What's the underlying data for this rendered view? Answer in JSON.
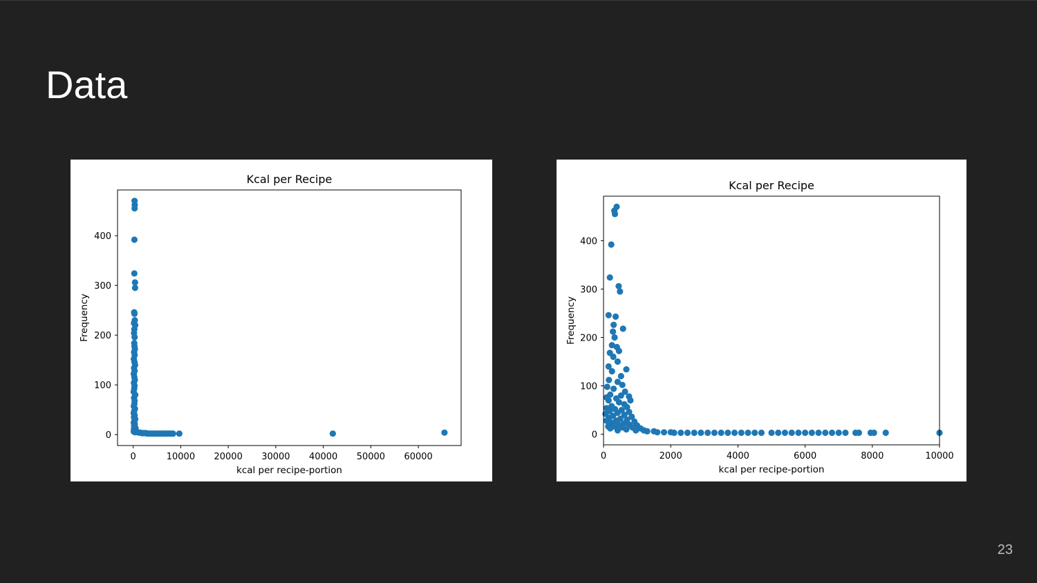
{
  "slide": {
    "title": "Data",
    "page_number": "23"
  },
  "colors": {
    "background": "#212121",
    "panel": "#ffffff",
    "marker": "#1f77b4",
    "title_text": "#ffffff",
    "page_number_text": "#bdbdbd"
  },
  "chart_data": [
    {
      "type": "scatter",
      "title": "Kcal per Recipe",
      "xlabel": "kcal per recipe-portion",
      "ylabel": "Frequency",
      "xlim": [
        -3300,
        69000
      ],
      "ylim": [
        -22,
        492
      ],
      "xticks": [
        0,
        10000,
        20000,
        30000,
        40000,
        50000,
        60000
      ],
      "xtick_labels": [
        "0",
        "10000",
        "20000",
        "30000",
        "40000",
        "50000",
        "60000"
      ],
      "yticks": [
        0,
        100,
        200,
        300,
        400
      ],
      "ytick_labels": [
        "0",
        "100",
        "200",
        "300",
        "400"
      ],
      "grid": false,
      "points": [
        [
          280,
          470
        ],
        [
          320,
          462
        ],
        [
          300,
          455
        ],
        [
          250,
          392
        ],
        [
          230,
          324
        ],
        [
          380,
          306
        ],
        [
          400,
          295
        ],
        [
          210,
          246
        ],
        [
          260,
          243
        ],
        [
          330,
          230
        ],
        [
          160,
          224
        ],
        [
          420,
          220
        ],
        [
          240,
          212
        ],
        [
          180,
          204
        ],
        [
          300,
          196
        ],
        [
          220,
          184
        ],
        [
          270,
          178
        ],
        [
          350,
          172
        ],
        [
          190,
          166
        ],
        [
          310,
          160
        ],
        [
          140,
          152
        ],
        [
          260,
          146
        ],
        [
          400,
          140
        ],
        [
          170,
          134
        ],
        [
          300,
          128
        ],
        [
          120,
          122
        ],
        [
          240,
          116
        ],
        [
          330,
          110
        ],
        [
          150,
          104
        ],
        [
          280,
          98
        ],
        [
          200,
          92
        ],
        [
          110,
          86
        ],
        [
          420,
          80
        ],
        [
          170,
          74
        ],
        [
          300,
          68
        ],
        [
          250,
          62
        ],
        [
          140,
          57
        ],
        [
          360,
          52
        ],
        [
          200,
          47
        ],
        [
          100,
          43
        ],
        [
          300,
          39
        ],
        [
          160,
          35
        ],
        [
          420,
          31
        ],
        [
          230,
          27
        ],
        [
          120,
          24
        ],
        [
          340,
          21
        ],
        [
          190,
          18
        ],
        [
          280,
          15
        ],
        [
          500,
          13
        ],
        [
          150,
          11
        ],
        [
          380,
          9
        ],
        [
          240,
          8
        ],
        [
          650,
          7
        ],
        [
          120,
          6
        ],
        [
          900,
          5
        ],
        [
          330,
          5
        ],
        [
          1200,
          4
        ],
        [
          1500,
          4
        ],
        [
          1800,
          3
        ],
        [
          2100,
          3
        ],
        [
          2400,
          3
        ],
        [
          2700,
          3
        ],
        [
          3000,
          2
        ],
        [
          3300,
          2
        ],
        [
          3600,
          2
        ],
        [
          3900,
          2
        ],
        [
          4200,
          2
        ],
        [
          4500,
          2
        ],
        [
          4800,
          2
        ],
        [
          5100,
          2
        ],
        [
          5400,
          2
        ],
        [
          5700,
          2
        ],
        [
          6000,
          2
        ],
        [
          6300,
          2
        ],
        [
          6600,
          2
        ],
        [
          6900,
          2
        ],
        [
          7200,
          2
        ],
        [
          7500,
          2
        ],
        [
          7800,
          2
        ],
        [
          8100,
          2
        ],
        [
          8400,
          2
        ],
        [
          9700,
          2
        ],
        [
          42000,
          2
        ],
        [
          65500,
          4
        ]
      ]
    },
    {
      "type": "scatter",
      "title": "Kcal per Recipe",
      "xlabel": "kcal per recipe-portion",
      "ylabel": "Frequency",
      "xlim": [
        0,
        10000
      ],
      "ylim": [
        -22,
        492
      ],
      "xticks": [
        0,
        2000,
        4000,
        6000,
        8000,
        10000
      ],
      "xtick_labels": [
        "0",
        "2000",
        "4000",
        "6000",
        "8000",
        "10000"
      ],
      "yticks": [
        0,
        100,
        200,
        300,
        400
      ],
      "ytick_labels": [
        "0",
        "100",
        "200",
        "300",
        "400"
      ],
      "grid": false,
      "points": [
        [
          390,
          470
        ],
        [
          320,
          462
        ],
        [
          340,
          455
        ],
        [
          230,
          392
        ],
        [
          190,
          324
        ],
        [
          450,
          306
        ],
        [
          490,
          295
        ],
        [
          150,
          246
        ],
        [
          360,
          243
        ],
        [
          580,
          218
        ],
        [
          300,
          226
        ],
        [
          280,
          212
        ],
        [
          330,
          200
        ],
        [
          250,
          184
        ],
        [
          400,
          180
        ],
        [
          460,
          172
        ],
        [
          190,
          168
        ],
        [
          290,
          160
        ],
        [
          420,
          150
        ],
        [
          150,
          140
        ],
        [
          680,
          134
        ],
        [
          250,
          130
        ],
        [
          520,
          120
        ],
        [
          160,
          112
        ],
        [
          420,
          108
        ],
        [
          560,
          102
        ],
        [
          110,
          98
        ],
        [
          300,
          94
        ],
        [
          640,
          88
        ],
        [
          200,
          82
        ],
        [
          520,
          80
        ],
        [
          760,
          78
        ],
        [
          90,
          76
        ],
        [
          380,
          74
        ],
        [
          800,
          70
        ],
        [
          150,
          70
        ],
        [
          460,
          66
        ],
        [
          620,
          62
        ],
        [
          240,
          58
        ],
        [
          700,
          56
        ],
        [
          90,
          54
        ],
        [
          340,
          52
        ],
        [
          540,
          50
        ],
        [
          180,
          48
        ],
        [
          760,
          46
        ],
        [
          420,
          44
        ],
        [
          60,
          42
        ],
        [
          620,
          40
        ],
        [
          280,
          38
        ],
        [
          840,
          36
        ],
        [
          160,
          34
        ],
        [
          500,
          32
        ],
        [
          700,
          30
        ],
        [
          90,
          28
        ],
        [
          380,
          28
        ],
        [
          920,
          26
        ],
        [
          240,
          24
        ],
        [
          600,
          22
        ],
        [
          440,
          20
        ],
        [
          760,
          20
        ],
        [
          1000,
          18
        ],
        [
          140,
          16
        ],
        [
          320,
          16
        ],
        [
          860,
          14
        ],
        [
          560,
          14
        ],
        [
          1100,
          12
        ],
        [
          200,
          12
        ],
        [
          680,
          10
        ],
        [
          1200,
          8
        ],
        [
          420,
          8
        ],
        [
          960,
          8
        ],
        [
          1300,
          6
        ],
        [
          1500,
          6
        ],
        [
          1600,
          4
        ],
        [
          1800,
          4
        ],
        [
          2000,
          4
        ],
        [
          2100,
          3
        ],
        [
          2300,
          3
        ],
        [
          2500,
          3
        ],
        [
          2700,
          3
        ],
        [
          2900,
          3
        ],
        [
          3100,
          3
        ],
        [
          3300,
          3
        ],
        [
          3500,
          3
        ],
        [
          3700,
          3
        ],
        [
          3900,
          3
        ],
        [
          4100,
          3
        ],
        [
          4300,
          3
        ],
        [
          4500,
          3
        ],
        [
          4700,
          3
        ],
        [
          5000,
          3
        ],
        [
          5200,
          3
        ],
        [
          5400,
          3
        ],
        [
          5600,
          3
        ],
        [
          5800,
          3
        ],
        [
          6000,
          3
        ],
        [
          6200,
          3
        ],
        [
          6400,
          3
        ],
        [
          6600,
          3
        ],
        [
          6800,
          3
        ],
        [
          7000,
          3
        ],
        [
          7200,
          3
        ],
        [
          7500,
          3
        ],
        [
          7600,
          3
        ],
        [
          7950,
          3
        ],
        [
          8050,
          3
        ],
        [
          8400,
          3
        ],
        [
          10000,
          3
        ]
      ]
    }
  ]
}
